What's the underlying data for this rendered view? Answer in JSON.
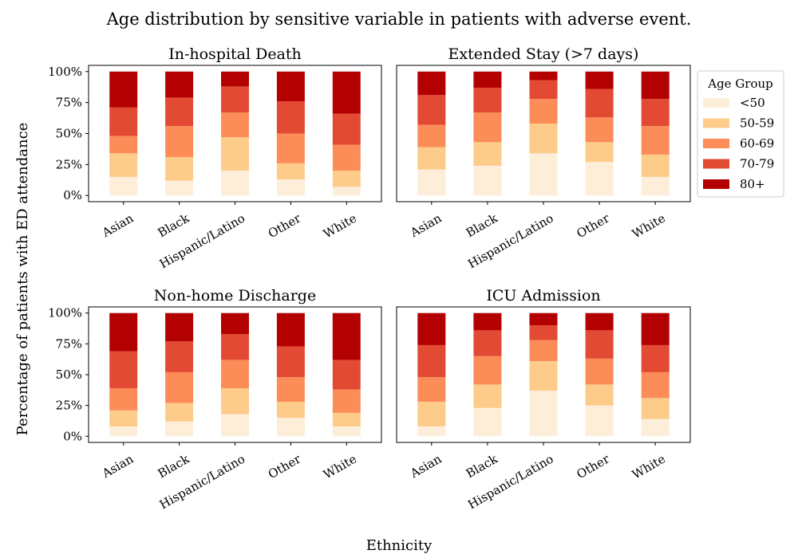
{
  "title": "Age distribution by sensitive variable in patients with adverse event.",
  "xlabel": "Ethnicity",
  "ylabel": "Percentage of patients with ED attendance",
  "legend": {
    "title": "Age Group",
    "placement": "outside-top-right",
    "entries": [
      "<50",
      "50-59",
      "60-69",
      "70-79",
      "80+"
    ]
  },
  "colors": {
    "<50": "#fdeed9",
    "50-59": "#fdcb8a",
    "60-69": "#fc8d59",
    "70-79": "#e34a33",
    "80+": "#b30000"
  },
  "y_ticks": [
    "0%",
    "25%",
    "50%",
    "75%",
    "100%"
  ],
  "chart_data": [
    {
      "type": "bar",
      "stacked": true,
      "title": "In-hospital Death",
      "categories": [
        "Asian",
        "Black",
        "Hispanic/Latino",
        "Other",
        "White"
      ],
      "ylim": [
        0,
        100
      ],
      "series": [
        {
          "name": "<50",
          "values": [
            15,
            12,
            20,
            13,
            7
          ]
        },
        {
          "name": "50-59",
          "values": [
            19,
            19,
            27,
            13,
            13
          ]
        },
        {
          "name": "60-69",
          "values": [
            14,
            25,
            20,
            24,
            21
          ]
        },
        {
          "name": "70-79",
          "values": [
            23,
            23,
            21,
            26,
            25
          ]
        },
        {
          "name": "80+",
          "values": [
            29,
            21,
            12,
            24,
            34
          ]
        }
      ]
    },
    {
      "type": "bar",
      "stacked": true,
      "title": "Extended Stay (>7 days)",
      "categories": [
        "Asian",
        "Black",
        "Hispanic/Latino",
        "Other",
        "White"
      ],
      "ylim": [
        0,
        100
      ],
      "series": [
        {
          "name": "<50",
          "values": [
            21,
            24,
            34,
            27,
            15
          ]
        },
        {
          "name": "50-59",
          "values": [
            18,
            19,
            24,
            16,
            18
          ]
        },
        {
          "name": "60-69",
          "values": [
            18,
            24,
            20,
            20,
            23
          ]
        },
        {
          "name": "70-79",
          "values": [
            24,
            20,
            15,
            23,
            22
          ]
        },
        {
          "name": "80+",
          "values": [
            19,
            13,
            7,
            14,
            22
          ]
        }
      ]
    },
    {
      "type": "bar",
      "stacked": true,
      "title": "Non-home Discharge",
      "categories": [
        "Asian",
        "Black",
        "Hispanic/Latino",
        "Other",
        "White"
      ],
      "ylim": [
        0,
        100
      ],
      "series": [
        {
          "name": "<50",
          "values": [
            8,
            12,
            18,
            15,
            8
          ]
        },
        {
          "name": "50-59",
          "values": [
            13,
            15,
            21,
            13,
            11
          ]
        },
        {
          "name": "60-69",
          "values": [
            18,
            25,
            23,
            20,
            19
          ]
        },
        {
          "name": "70-79",
          "values": [
            30,
            25,
            21,
            25,
            24
          ]
        },
        {
          "name": "80+",
          "values": [
            31,
            23,
            17,
            27,
            38
          ]
        }
      ]
    },
    {
      "type": "bar",
      "stacked": true,
      "title": "ICU Admission",
      "categories": [
        "Asian",
        "Black",
        "Hispanic/Latino",
        "Other",
        "White"
      ],
      "ylim": [
        0,
        100
      ],
      "series": [
        {
          "name": "<50",
          "values": [
            8,
            23,
            37,
            25,
            14
          ]
        },
        {
          "name": "50-59",
          "values": [
            20,
            19,
            24,
            17,
            17
          ]
        },
        {
          "name": "60-69",
          "values": [
            20,
            23,
            17,
            21,
            21
          ]
        },
        {
          "name": "70-79",
          "values": [
            26,
            21,
            12,
            23,
            22
          ]
        },
        {
          "name": "80+",
          "values": [
            26,
            14,
            10,
            14,
            26
          ]
        }
      ]
    }
  ]
}
